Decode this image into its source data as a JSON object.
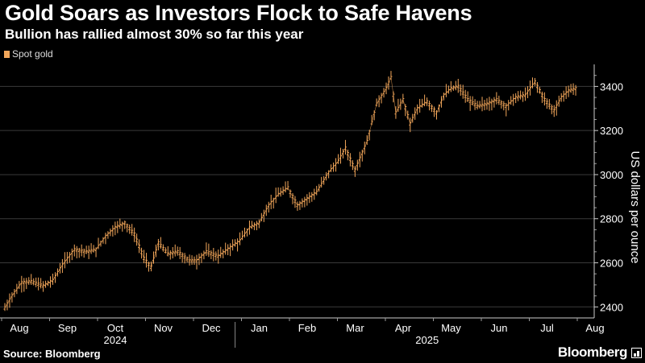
{
  "header": {
    "title": "Gold Soars as Investors Flock to Safe Havens",
    "subtitle": "Bullion has rallied almost 30% so far this year"
  },
  "footer": {
    "source": "Source: Bloomberg",
    "brand": "Bloomberg"
  },
  "colors": {
    "series": "#f2a65a",
    "background": "#000000",
    "grid": "#3a3a3a"
  },
  "chart_data": {
    "type": "line",
    "title": "Gold Soars as Investors Flock to Safe Havens",
    "subtitle": "Bullion has rallied almost 30% so far this year",
    "ylabel": "US dollars per ounce",
    "xlabel": "",
    "ylim": [
      2350,
      3500
    ],
    "yticks": [
      2400,
      2600,
      2800,
      3000,
      3200,
      3400
    ],
    "legend": "top-left",
    "grid": true,
    "months": [
      "Aug",
      "Sep",
      "Oct",
      "Nov",
      "Dec",
      "Jan",
      "Feb",
      "Mar",
      "Apr",
      "May",
      "Jun",
      "Jul",
      "Aug"
    ],
    "years": [
      {
        "label": "2024",
        "start_month": 0,
        "end_month": 4
      },
      {
        "label": "2025",
        "start_month": 5,
        "end_month": 12
      }
    ],
    "series": [
      {
        "name": "Spot gold",
        "x_months": [
          0.0,
          0.15,
          0.35,
          0.55,
          0.8,
          1.0,
          1.2,
          1.45,
          1.7,
          1.9,
          2.1,
          2.3,
          2.5,
          2.7,
          2.9,
          3.05,
          3.2,
          3.4,
          3.6,
          3.85,
          4.0,
          4.2,
          4.45,
          4.7,
          4.9,
          5.1,
          5.3,
          5.5,
          5.7,
          5.9,
          6.1,
          6.3,
          6.5,
          6.75,
          6.95,
          7.1,
          7.3,
          7.55,
          7.75,
          7.95,
          8.05,
          8.15,
          8.3,
          8.45,
          8.6,
          8.8,
          9.0,
          9.15,
          9.3,
          9.45,
          9.65,
          9.85,
          10.05,
          10.25,
          10.45,
          10.65,
          10.85,
          11.05,
          11.25,
          11.45,
          11.6,
          11.75,
          11.9
        ],
        "values": [
          2395,
          2450,
          2510,
          2515,
          2495,
          2520,
          2590,
          2660,
          2650,
          2660,
          2720,
          2760,
          2780,
          2730,
          2620,
          2580,
          2690,
          2640,
          2650,
          2610,
          2610,
          2650,
          2630,
          2670,
          2700,
          2760,
          2780,
          2860,
          2910,
          2940,
          2860,
          2890,
          2920,
          3010,
          3060,
          3120,
          3020,
          3150,
          3320,
          3390,
          3440,
          3280,
          3340,
          3230,
          3300,
          3330,
          3280,
          3360,
          3390,
          3400,
          3340,
          3310,
          3320,
          3340,
          3310,
          3350,
          3360,
          3420,
          3340,
          3290,
          3350,
          3380,
          3390
        ]
      }
    ]
  }
}
